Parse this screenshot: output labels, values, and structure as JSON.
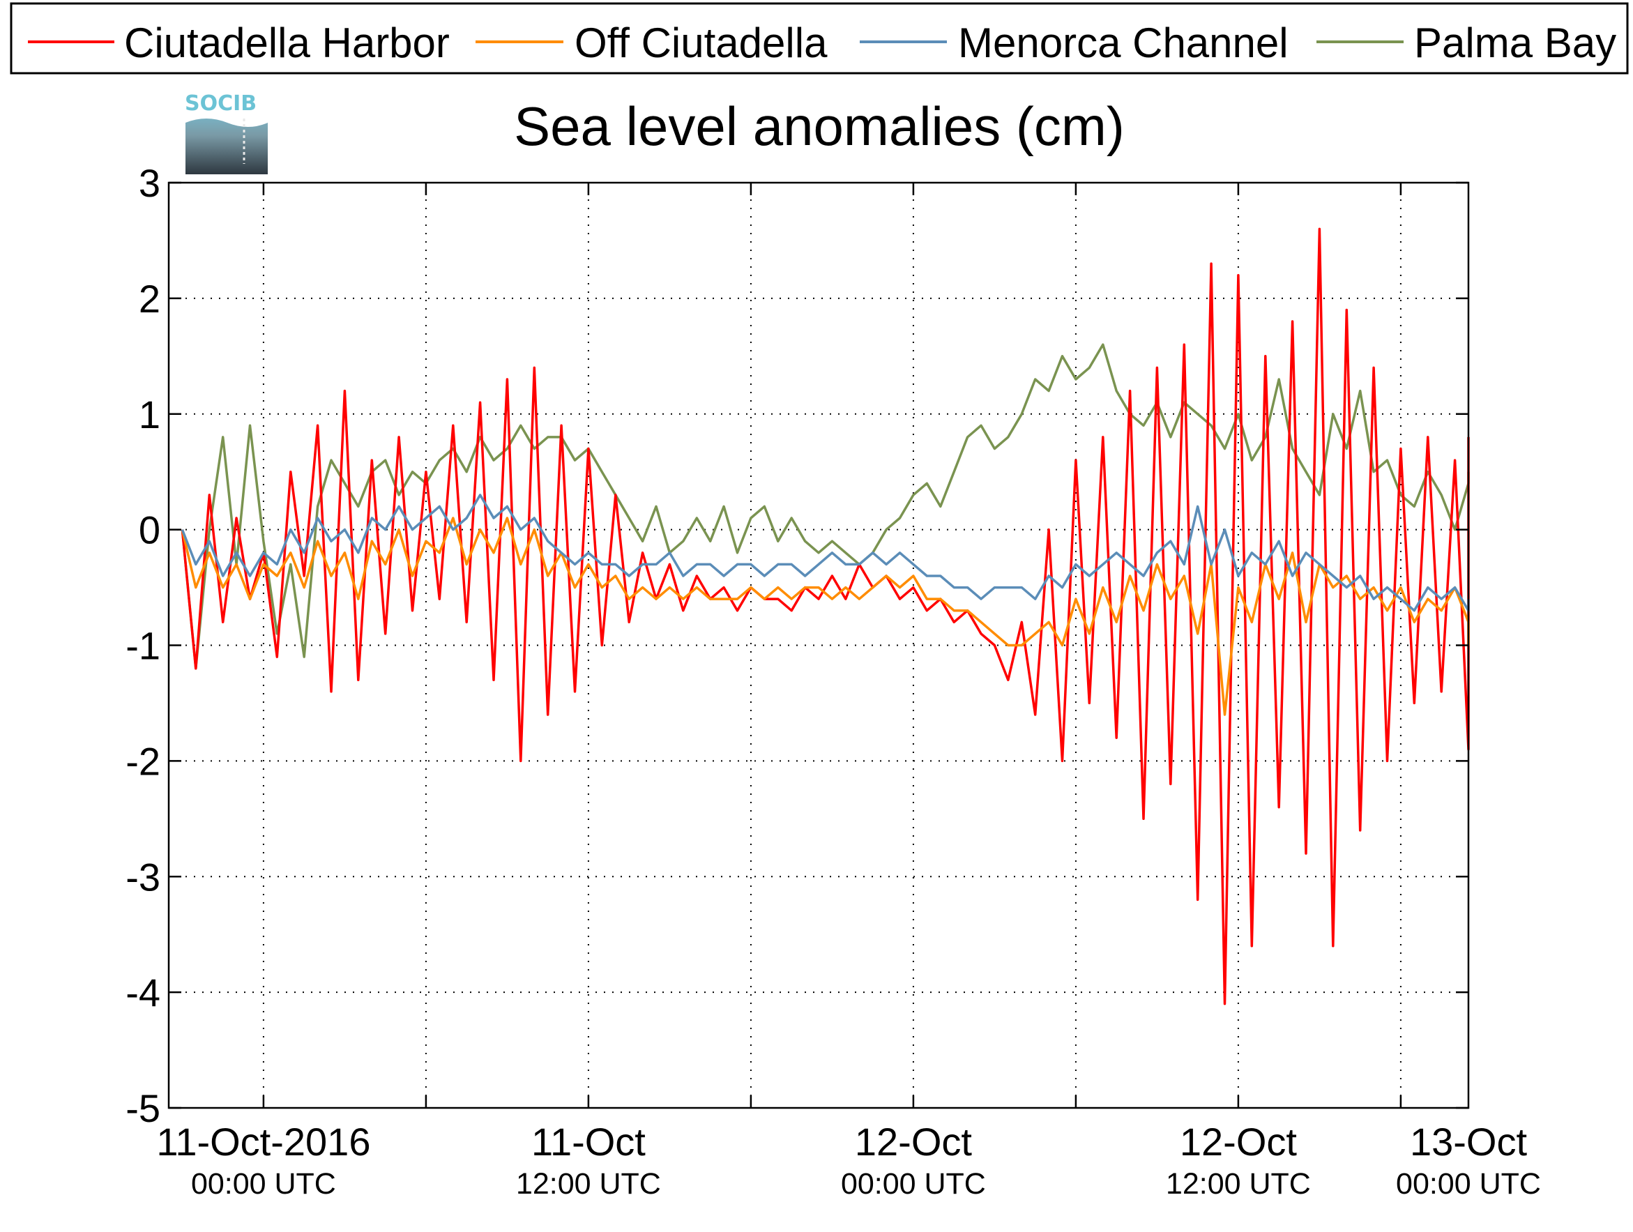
{
  "chart_data": {
    "type": "line",
    "title": "Sea level anomalies (cm)",
    "logo": "SOCIB",
    "xlabel": "",
    "ylabel": "",
    "ylim": [
      -5,
      3
    ],
    "yticks": [
      3,
      2,
      1,
      0,
      -1,
      -2,
      -3,
      -4,
      -5
    ],
    "ytick_labels": [
      "3",
      "2",
      "1",
      "0",
      "-1",
      "-2",
      "-3",
      "-4",
      "-5"
    ],
    "xlim_hours": [
      -3,
      45
    ],
    "xticks": [
      {
        "hours": 0,
        "main": "11-Oct-2016",
        "sub": "00:00 UTC"
      },
      {
        "hours": 12,
        "main": "11-Oct",
        "sub": "12:00 UTC"
      },
      {
        "hours": 24,
        "main": "12-Oct",
        "sub": "00:00 UTC"
      },
      {
        "hours": 36,
        "main": "12-Oct",
        "sub": "12:00 UTC"
      },
      {
        "hours": 48,
        "main": "13-Oct",
        "sub": "00:00 UTC"
      }
    ],
    "grid": true,
    "legend_position": "top",
    "series": [
      {
        "name": "Ciutadella Harbor",
        "color": "#ff0000",
        "x": [
          -3,
          -2.5,
          -2,
          -1.5,
          -1,
          -0.5,
          0,
          0.5,
          1,
          1.5,
          2,
          2.5,
          3,
          3.5,
          4,
          4.5,
          5,
          5.5,
          6,
          6.5,
          7,
          7.5,
          8,
          8.5,
          9,
          9.5,
          10,
          10.5,
          11,
          11.5,
          12,
          12.5,
          13,
          13.5,
          14,
          14.5,
          15,
          15.5,
          16,
          16.5,
          17,
          17.5,
          18,
          18.5,
          19,
          19.5,
          20,
          20.5,
          21,
          21.5,
          22,
          22.5,
          23,
          23.5,
          24,
          24.5,
          25,
          25.5,
          26,
          26.5,
          27,
          27.5,
          28,
          28.5,
          29,
          29.5,
          30,
          30.5,
          31,
          31.5,
          32,
          32.5,
          33,
          33.5,
          34,
          34.5,
          35,
          35.5,
          36,
          36.5,
          37,
          37.5,
          38,
          38.5,
          39,
          39.5,
          40,
          40.5,
          41,
          41.5,
          42,
          42.5,
          43,
          43.5,
          44,
          44.5,
          45
        ],
        "values": [
          0.0,
          -1.2,
          0.3,
          -0.8,
          0.1,
          -0.6,
          -0.2,
          -1.1,
          0.5,
          -0.4,
          0.9,
          -1.4,
          1.2,
          -1.3,
          0.6,
          -0.9,
          0.8,
          -0.7,
          0.5,
          -0.6,
          0.9,
          -0.8,
          1.1,
          -1.3,
          1.3,
          -2.0,
          1.4,
          -1.6,
          0.9,
          -1.4,
          0.7,
          -1.0,
          0.3,
          -0.8,
          -0.2,
          -0.6,
          -0.3,
          -0.7,
          -0.4,
          -0.6,
          -0.5,
          -0.7,
          -0.5,
          -0.6,
          -0.6,
          -0.7,
          -0.5,
          -0.6,
          -0.4,
          -0.6,
          -0.3,
          -0.5,
          -0.4,
          -0.6,
          -0.5,
          -0.7,
          -0.6,
          -0.8,
          -0.7,
          -0.9,
          -1.0,
          -1.3,
          -0.8,
          -1.6,
          0.0,
          -2.0,
          0.6,
          -1.5,
          0.8,
          -1.8,
          1.2,
          -2.5,
          1.4,
          -2.2,
          1.6,
          -3.2,
          2.3,
          -4.1,
          2.2,
          -3.6,
          1.5,
          -2.4,
          1.8,
          -2.8,
          2.6,
          -3.6,
          1.9,
          -2.6,
          1.4,
          -2.0,
          0.7,
          -1.5,
          0.8,
          -1.4,
          0.6,
          -1.9,
          0.8
        ]
      },
      {
        "name": "Off Ciutadella",
        "color": "#ff8c00",
        "x": [
          -3,
          -2.5,
          -2,
          -1.5,
          -1,
          -0.5,
          0,
          0.5,
          1,
          1.5,
          2,
          2.5,
          3,
          3.5,
          4,
          4.5,
          5,
          5.5,
          6,
          6.5,
          7,
          7.5,
          8,
          8.5,
          9,
          9.5,
          10,
          10.5,
          11,
          11.5,
          12,
          12.5,
          13,
          13.5,
          14,
          14.5,
          15,
          15.5,
          16,
          16.5,
          17,
          17.5,
          18,
          18.5,
          19,
          19.5,
          20,
          20.5,
          21,
          21.5,
          22,
          22.5,
          23,
          23.5,
          24,
          24.5,
          25,
          25.5,
          26,
          26.5,
          27,
          27.5,
          28,
          28.5,
          29,
          29.5,
          30,
          30.5,
          31,
          31.5,
          32,
          32.5,
          33,
          33.5,
          34,
          34.5,
          35,
          35.5,
          36,
          36.5,
          37,
          37.5,
          38,
          38.5,
          39,
          39.5,
          40,
          40.5,
          41,
          41.5,
          42,
          42.5,
          43,
          43.5,
          44,
          44.5,
          45
        ],
        "values": [
          0.0,
          -0.5,
          -0.2,
          -0.5,
          -0.3,
          -0.6,
          -0.3,
          -0.4,
          -0.2,
          -0.5,
          -0.1,
          -0.4,
          -0.2,
          -0.6,
          -0.1,
          -0.3,
          0.0,
          -0.4,
          -0.1,
          -0.2,
          0.1,
          -0.3,
          0.0,
          -0.2,
          0.1,
          -0.3,
          0.0,
          -0.4,
          -0.2,
          -0.5,
          -0.3,
          -0.5,
          -0.4,
          -0.6,
          -0.5,
          -0.6,
          -0.5,
          -0.6,
          -0.5,
          -0.6,
          -0.6,
          -0.6,
          -0.5,
          -0.6,
          -0.5,
          -0.6,
          -0.5,
          -0.5,
          -0.6,
          -0.5,
          -0.6,
          -0.5,
          -0.4,
          -0.5,
          -0.4,
          -0.6,
          -0.6,
          -0.7,
          -0.7,
          -0.8,
          -0.9,
          -1.0,
          -1.0,
          -0.9,
          -0.8,
          -1.0,
          -0.6,
          -0.9,
          -0.5,
          -0.8,
          -0.4,
          -0.7,
          -0.3,
          -0.6,
          -0.4,
          -0.9,
          -0.3,
          -1.6,
          -0.5,
          -0.8,
          -0.3,
          -0.6,
          -0.2,
          -0.8,
          -0.3,
          -0.5,
          -0.4,
          -0.6,
          -0.5,
          -0.7,
          -0.5,
          -0.8,
          -0.6,
          -0.7,
          -0.5,
          -0.8,
          -1.0
        ]
      },
      {
        "name": "Menorca Channel",
        "color": "#5b8db8",
        "x": [
          -3,
          -2.5,
          -2,
          -1.5,
          -1,
          -0.5,
          0,
          0.5,
          1,
          1.5,
          2,
          2.5,
          3,
          3.5,
          4,
          4.5,
          5,
          5.5,
          6,
          6.5,
          7,
          7.5,
          8,
          8.5,
          9,
          9.5,
          10,
          10.5,
          11,
          11.5,
          12,
          12.5,
          13,
          13.5,
          14,
          14.5,
          15,
          15.5,
          16,
          16.5,
          17,
          17.5,
          18,
          18.5,
          19,
          19.5,
          20,
          20.5,
          21,
          21.5,
          22,
          22.5,
          23,
          23.5,
          24,
          24.5,
          25,
          25.5,
          26,
          26.5,
          27,
          27.5,
          28,
          28.5,
          29,
          29.5,
          30,
          30.5,
          31,
          31.5,
          32,
          32.5,
          33,
          33.5,
          34,
          34.5,
          35,
          35.5,
          36,
          36.5,
          37,
          37.5,
          38,
          38.5,
          39,
          39.5,
          40,
          40.5,
          41,
          41.5,
          42,
          42.5,
          43,
          43.5,
          44,
          44.5,
          45
        ],
        "values": [
          0.0,
          -0.3,
          -0.1,
          -0.4,
          -0.2,
          -0.4,
          -0.2,
          -0.3,
          0.0,
          -0.2,
          0.1,
          -0.1,
          0.0,
          -0.2,
          0.1,
          0.0,
          0.2,
          0.0,
          0.1,
          0.2,
          0.0,
          0.1,
          0.3,
          0.1,
          0.2,
          0.0,
          0.1,
          -0.1,
          -0.2,
          -0.3,
          -0.2,
          -0.3,
          -0.3,
          -0.4,
          -0.3,
          -0.3,
          -0.2,
          -0.4,
          -0.3,
          -0.3,
          -0.4,
          -0.3,
          -0.3,
          -0.4,
          -0.3,
          -0.3,
          -0.4,
          -0.3,
          -0.2,
          -0.3,
          -0.3,
          -0.2,
          -0.3,
          -0.2,
          -0.3,
          -0.4,
          -0.4,
          -0.5,
          -0.5,
          -0.6,
          -0.5,
          -0.5,
          -0.5,
          -0.6,
          -0.4,
          -0.5,
          -0.3,
          -0.4,
          -0.3,
          -0.2,
          -0.3,
          -0.4,
          -0.2,
          -0.1,
          -0.3,
          0.2,
          -0.3,
          0.0,
          -0.4,
          -0.2,
          -0.3,
          -0.1,
          -0.4,
          -0.2,
          -0.3,
          -0.4,
          -0.5,
          -0.4,
          -0.6,
          -0.5,
          -0.6,
          -0.7,
          -0.5,
          -0.6,
          -0.5,
          -0.7,
          -0.6
        ]
      },
      {
        "name": "Palma Bay",
        "color": "#7a9350",
        "x": [
          -3,
          -2.5,
          -2,
          -1.5,
          -1,
          -0.5,
          0,
          0.5,
          1,
          1.5,
          2,
          2.5,
          3,
          3.5,
          4,
          4.5,
          5,
          5.5,
          6,
          6.5,
          7,
          7.5,
          8,
          8.5,
          9,
          9.5,
          10,
          10.5,
          11,
          11.5,
          12,
          12.5,
          13,
          13.5,
          14,
          14.5,
          15,
          15.5,
          16,
          16.5,
          17,
          17.5,
          18,
          18.5,
          19,
          19.5,
          20,
          20.5,
          21,
          21.5,
          22,
          22.5,
          23,
          23.5,
          24,
          24.5,
          25,
          25.5,
          26,
          26.5,
          27,
          27.5,
          28,
          28.5,
          29,
          29.5,
          30,
          30.5,
          31,
          31.5,
          32,
          32.5,
          33,
          33.5,
          34,
          34.5,
          35,
          35.5,
          36,
          36.5,
          37,
          37.5,
          38,
          38.5,
          39,
          39.5,
          40,
          40.5,
          41,
          41.5,
          42,
          42.5,
          43,
          43.5,
          44,
          44.5,
          45
        ],
        "values": [
          0.0,
          -1.2,
          0.0,
          0.8,
          -0.3,
          0.9,
          -0.1,
          -0.9,
          -0.3,
          -1.1,
          0.2,
          0.6,
          0.4,
          0.2,
          0.5,
          0.6,
          0.3,
          0.5,
          0.4,
          0.6,
          0.7,
          0.5,
          0.8,
          0.6,
          0.7,
          0.9,
          0.7,
          0.8,
          0.8,
          0.6,
          0.7,
          0.5,
          0.3,
          0.1,
          -0.1,
          0.2,
          -0.2,
          -0.1,
          0.1,
          -0.1,
          0.2,
          -0.2,
          0.1,
          0.2,
          -0.1,
          0.1,
          -0.1,
          -0.2,
          -0.1,
          -0.2,
          -0.3,
          -0.2,
          0.0,
          0.1,
          0.3,
          0.4,
          0.2,
          0.5,
          0.8,
          0.9,
          0.7,
          0.8,
          1.0,
          1.3,
          1.2,
          1.5,
          1.3,
          1.4,
          1.6,
          1.2,
          1.0,
          0.9,
          1.1,
          0.8,
          1.1,
          1.0,
          0.9,
          0.7,
          1.0,
          0.6,
          0.8,
          1.3,
          0.7,
          0.5,
          0.3,
          1.0,
          0.7,
          1.2,
          0.5,
          0.6,
          0.3,
          0.2,
          0.5,
          0.3,
          0.0,
          0.4,
          0.5
        ]
      }
    ]
  }
}
